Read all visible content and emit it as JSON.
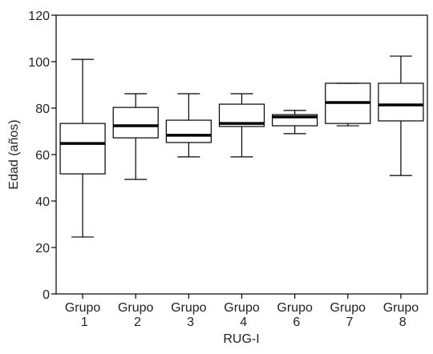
{
  "chart_data": {
    "type": "box",
    "xlabel": "RUG-I",
    "ylabel": "Edad (años)",
    "categories": [
      "Grupo 1",
      "Grupo 2",
      "Grupo 3",
      "Grupo 4",
      "Grupo 6",
      "Grupo 7",
      "Grupo 8"
    ],
    "min": [
      24.5,
      49.3,
      59,
      59,
      69,
      72.4,
      51
    ],
    "q1": [
      51.7,
      67.2,
      65.2,
      72.1,
      72.4,
      73.4,
      74.5
    ],
    "median": [
      64.8,
      72.4,
      68.3,
      73.4,
      76.2,
      82.4,
      81.4
    ],
    "q3": [
      73.4,
      80.3,
      74.8,
      81.7,
      77.2,
      90.7,
      90.7
    ],
    "max": [
      101,
      86.2,
      86.2,
      86.2,
      79,
      90.7,
      102.4
    ],
    "color": "#000000",
    "ylim": [
      0,
      120
    ],
    "yticks": [
      0,
      20,
      40,
      60,
      80,
      100,
      120
    ]
  }
}
